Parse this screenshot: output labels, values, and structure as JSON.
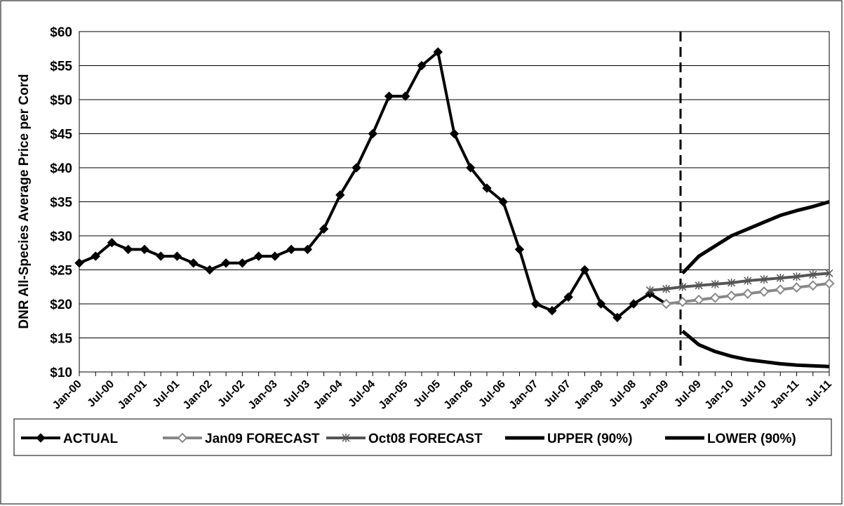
{
  "chart_data": {
    "type": "line",
    "y_label": "DNR All-Species Average Price per Cord",
    "categories": [
      "Jan-00",
      null,
      "Jul-00",
      null,
      "Jan-01",
      null,
      "Jul-01",
      null,
      "Jan-02",
      null,
      "Jul-02",
      null,
      "Jan-03",
      null,
      "Jul-03",
      null,
      "Jan-04",
      null,
      "Jul-04",
      null,
      "Jan-05",
      null,
      "Jul-05",
      null,
      "Jan-06",
      null,
      "Jul-06",
      null,
      "Jan-07",
      null,
      "Jul-07",
      null,
      "Jan-08",
      null,
      "Jul-08",
      null,
      "Jan-09",
      null,
      "Jul-09",
      null,
      "Jan-10",
      null,
      "Jul-10",
      null,
      "Jan-11",
      null,
      "Jul-11"
    ],
    "series": [
      {
        "name": "ACTUAL",
        "color": "#000000",
        "marker": "diamond",
        "values": [
          26,
          27,
          29,
          28,
          28,
          27,
          27,
          26,
          25,
          26,
          26,
          27,
          27,
          28,
          28,
          31,
          36,
          40,
          45,
          50.5,
          50.5,
          55,
          57,
          45,
          40,
          37,
          35,
          28,
          20,
          19,
          21,
          25,
          20,
          18,
          20,
          21.5,
          20,
          null,
          null,
          null,
          null,
          null,
          null,
          null,
          null,
          null,
          null
        ]
      },
      {
        "name": "Jan09 FORECAST",
        "color": "#888888",
        "marker": "open-diamond",
        "values": [
          null,
          null,
          null,
          null,
          null,
          null,
          null,
          null,
          null,
          null,
          null,
          null,
          null,
          null,
          null,
          null,
          null,
          null,
          null,
          null,
          null,
          null,
          null,
          null,
          null,
          null,
          null,
          null,
          null,
          null,
          null,
          null,
          null,
          null,
          null,
          null,
          20,
          20.3,
          20.6,
          20.9,
          21.2,
          21.5,
          21.8,
          22.1,
          22.4,
          22.7,
          23
        ]
      },
      {
        "name": "Oct08 FORECAST",
        "color": "#555555",
        "marker": "star",
        "values": [
          null,
          null,
          null,
          null,
          null,
          null,
          null,
          null,
          null,
          null,
          null,
          null,
          null,
          null,
          null,
          null,
          null,
          null,
          null,
          null,
          null,
          null,
          null,
          null,
          null,
          null,
          null,
          null,
          null,
          null,
          null,
          null,
          null,
          null,
          null,
          22,
          22.2,
          22.5,
          22.7,
          22.9,
          23.1,
          23.4,
          23.6,
          23.8,
          24,
          24.3,
          24.5
        ]
      },
      {
        "name": "UPPER (90%)",
        "color": "#000000",
        "marker": "none",
        "values": [
          null,
          null,
          null,
          null,
          null,
          null,
          null,
          null,
          null,
          null,
          null,
          null,
          null,
          null,
          null,
          null,
          null,
          null,
          null,
          null,
          null,
          null,
          null,
          null,
          null,
          null,
          null,
          null,
          null,
          null,
          null,
          null,
          null,
          null,
          null,
          null,
          null,
          24.5,
          27,
          28.5,
          30,
          31,
          32,
          33,
          33.7,
          34.3,
          35
        ]
      },
      {
        "name": "LOWER (90%)",
        "color": "#000000",
        "marker": "none",
        "values": [
          null,
          null,
          null,
          null,
          null,
          null,
          null,
          null,
          null,
          null,
          null,
          null,
          null,
          null,
          null,
          null,
          null,
          null,
          null,
          null,
          null,
          null,
          null,
          null,
          null,
          null,
          null,
          null,
          null,
          null,
          null,
          null,
          null,
          null,
          null,
          null,
          null,
          16,
          14,
          13,
          12.3,
          11.8,
          11.5,
          11.2,
          11,
          10.9,
          10.8
        ]
      }
    ],
    "ylim": [
      10,
      60
    ],
    "yticks": [
      {
        "value": 10,
        "label": "$10"
      },
      {
        "value": 15,
        "label": "$15"
      },
      {
        "value": 20,
        "label": "$20"
      },
      {
        "value": 25,
        "label": "$25"
      },
      {
        "value": 30,
        "label": "$30"
      },
      {
        "value": 35,
        "label": "$35"
      },
      {
        "value": 40,
        "label": "$40"
      },
      {
        "value": 45,
        "label": "$45"
      },
      {
        "value": 50,
        "label": "$50"
      },
      {
        "value": 55,
        "label": "$55"
      },
      {
        "value": 60,
        "label": "$60"
      }
    ],
    "grid": true,
    "legend": "bottom"
  }
}
